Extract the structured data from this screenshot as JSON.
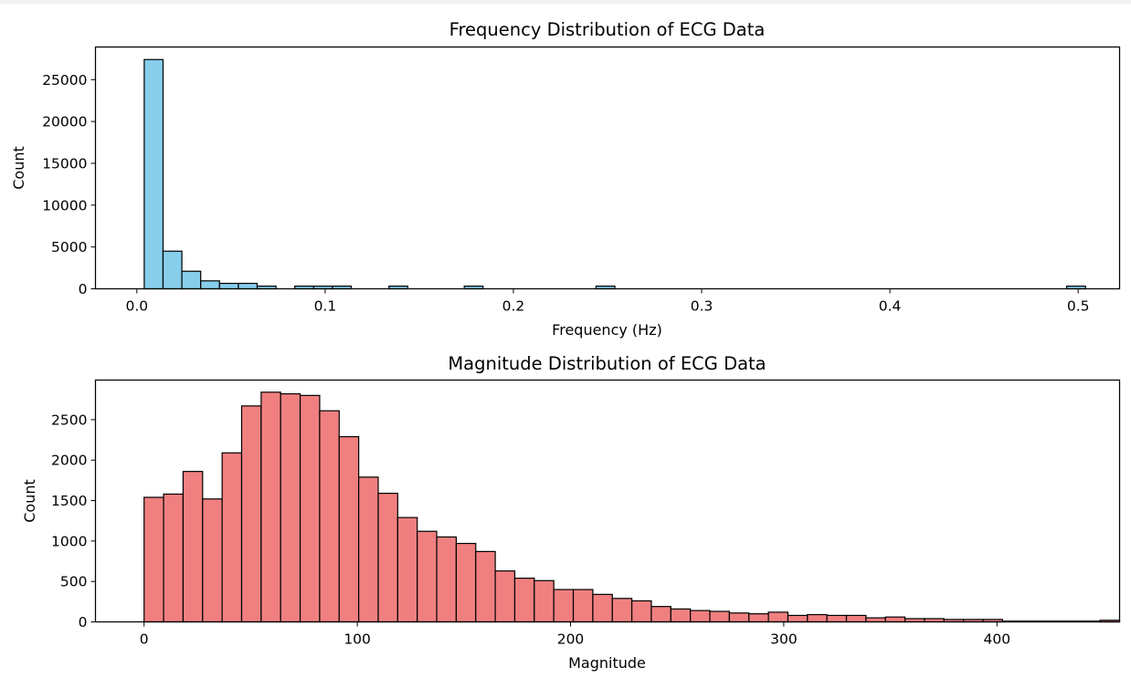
{
  "chart_data": [
    {
      "type": "bar",
      "title": "Frequency Distribution of ECG Data",
      "xlabel": "Frequency (Hz)",
      "ylabel": "Count",
      "xlim": [
        -0.022,
        0.522
      ],
      "ylim": [
        0,
        28900
      ],
      "xticks": [
        0.0,
        0.1,
        0.2,
        0.3,
        0.4,
        0.5
      ],
      "xtick_labels": [
        "0.0",
        "0.1",
        "0.2",
        "0.3",
        "0.4",
        "0.5"
      ],
      "yticks": [
        0,
        5000,
        10000,
        15000,
        20000,
        25000
      ],
      "ytick_labels": [
        "0",
        "5000",
        "10000",
        "15000",
        "20000",
        "25000"
      ],
      "bin_start": 0.0039,
      "bin_width": 0.01,
      "values": [
        27400,
        4500,
        2100,
        950,
        650,
        650,
        320,
        0,
        320,
        320,
        320,
        0,
        0,
        320,
        0,
        0,
        0,
        320,
        0,
        0,
        0,
        0,
        0,
        0,
        320,
        0,
        0,
        0,
        0,
        0,
        0,
        0,
        0,
        0,
        0,
        0,
        0,
        0,
        0,
        0,
        0,
        0,
        0,
        0,
        0,
        0,
        0,
        0,
        0,
        320
      ],
      "color": "#87ceeb",
      "edge_color": "#000000",
      "grid": false
    },
    {
      "type": "bar",
      "title": "Magnitude Distribution of ECG Data",
      "xlabel": "Magnitude",
      "ylabel": "Count",
      "xlim": [
        -22.8,
        457.5
      ],
      "ylim": [
        0,
        2990
      ],
      "xticks": [
        0,
        100,
        200,
        300,
        400
      ],
      "xtick_labels": [
        "0",
        "100",
        "200",
        "300",
        "400"
      ],
      "yticks": [
        0,
        500,
        1000,
        1500,
        2000,
        2500
      ],
      "ytick_labels": [
        "0",
        "500",
        "1000",
        "1500",
        "2000",
        "2500"
      ],
      "bin_start": 0,
      "bin_width": 9.15,
      "values": [
        1540,
        1580,
        1860,
        1520,
        2090,
        2670,
        2840,
        2820,
        2800,
        2610,
        2290,
        1790,
        1590,
        1290,
        1120,
        1050,
        970,
        870,
        630,
        540,
        510,
        400,
        400,
        340,
        290,
        260,
        190,
        160,
        140,
        130,
        110,
        100,
        120,
        80,
        90,
        80,
        80,
        50,
        60,
        40,
        40,
        30,
        30,
        30,
        10,
        10,
        10,
        10,
        10,
        20
      ],
      "color": "#f08080",
      "edge_color": "#000000",
      "grid": false
    }
  ]
}
